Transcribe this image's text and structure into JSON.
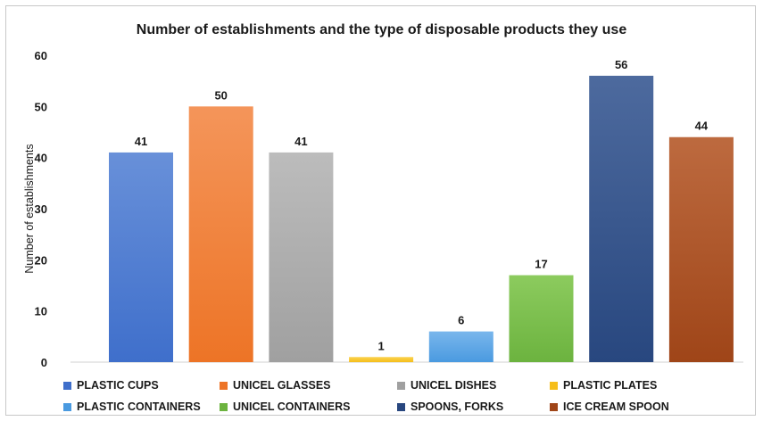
{
  "chart_data": {
    "type": "bar",
    "title": "Number of establishments and the type of disposable products they use",
    "ylabel": "Number of establishments",
    "xlabel": "",
    "ylim": [
      0,
      60
    ],
    "yticks": [
      0,
      10,
      20,
      30,
      40,
      50,
      60
    ],
    "grid": false,
    "legend_position": "bottom",
    "categories": [
      "PLASTIC CUPS",
      "UNICEL GLASSES",
      "UNICEL DISHES",
      "PLASTIC PLATES",
      "PLASTIC CONTAINERS",
      "UNICEL CONTAINERS",
      "SPOONS, FORKS",
      "ICE CREAM SPOON"
    ],
    "values": [
      41,
      50,
      41,
      1,
      6,
      17,
      56,
      44
    ],
    "colors": [
      "#3f6fcb",
      "#ed7426",
      "#a0a0a0",
      "#f6be1a",
      "#4a9ae0",
      "#6cb33f",
      "#28477f",
      "#9f4518"
    ],
    "colors_light": [
      "#6890d9",
      "#f4955a",
      "#bcbcbc",
      "#fad24f",
      "#79b6ec",
      "#8ccb5e",
      "#4d6a9e",
      "#bd6a3f"
    ]
  }
}
